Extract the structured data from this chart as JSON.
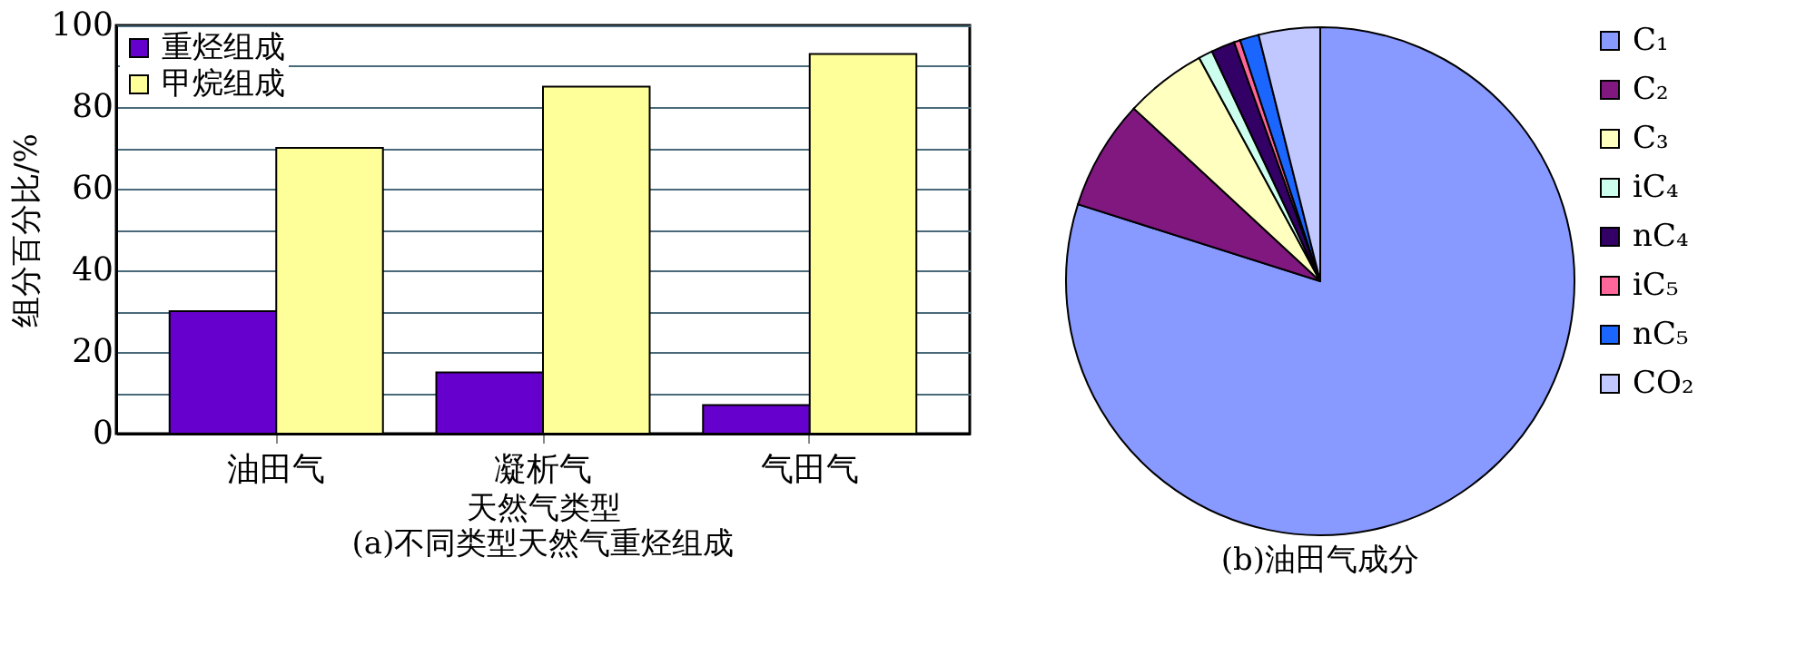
{
  "chart_data": [
    {
      "type": "bar",
      "title": "(a)不同类型天然气重烃组成",
      "xlabel": "天然气类型",
      "ylabel": "组分百分比/%",
      "categories": [
        "油田气",
        "凝析气",
        "气田气"
      ],
      "series": [
        {
          "name": "重烃组成",
          "color": "#6600cc",
          "values": [
            30,
            15,
            7
          ]
        },
        {
          "name": "甲烷组成",
          "color": "#ffff99",
          "values": [
            70,
            85,
            93
          ]
        }
      ],
      "ylim": [
        0,
        100
      ],
      "yticks": [
        0,
        {
          "value": 10,
          "label": null
        },
        20,
        {
          "value": 30,
          "label": null
        },
        40,
        {
          "value": 50,
          "label": null
        },
        60,
        {
          "value": 70,
          "label": null
        },
        80,
        {
          "value": 90,
          "label": null
        },
        100
      ],
      "grid": "y",
      "legend": "top left"
    },
    {
      "type": "pie",
      "title": "(b)油田气成分",
      "categories": [
        "C₁",
        "C₂",
        "C₃",
        "iC₄",
        "nC₄",
        "iC₅",
        "nC₅",
        "CO₂"
      ],
      "values": [
        79.9,
        7.0,
        5.2,
        0.9,
        1.5,
        0.4,
        1.2,
        3.9
      ],
      "colors": [
        "#8899ff",
        "#801880",
        "#ffffc0",
        "#ccffee",
        "#330066",
        "#ff6699",
        "#1a66ff",
        "#c0c8ff"
      ],
      "legend": "right"
    }
  ]
}
